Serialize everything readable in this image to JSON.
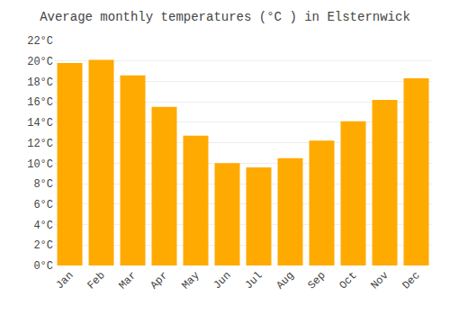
{
  "chart_data": {
    "type": "bar",
    "title": "Average monthly temperatures (°C ) in Elsternwick",
    "categories": [
      "Jan",
      "Feb",
      "Mar",
      "Apr",
      "May",
      "Jun",
      "Jul",
      "Aug",
      "Sep",
      "Oct",
      "Nov",
      "Dec"
    ],
    "values": [
      19.8,
      20.1,
      18.6,
      15.5,
      12.7,
      10.0,
      9.6,
      10.5,
      12.2,
      14.1,
      16.2,
      18.3
    ],
    "color": "#FFAA00",
    "ylim": [
      0,
      22
    ],
    "yticks": [
      {
        "value": 0,
        "label": "0°C"
      },
      {
        "value": 2,
        "label": "2°C"
      },
      {
        "value": 4,
        "label": "4°C"
      },
      {
        "value": 6,
        "label": "6°C"
      },
      {
        "value": 8,
        "label": "8°C"
      },
      {
        "value": 10,
        "label": "10°C"
      },
      {
        "value": 12,
        "label": "12°C"
      },
      {
        "value": 14,
        "label": "14°C"
      },
      {
        "value": 16,
        "label": "16°C"
      },
      {
        "value": 18,
        "label": "18°C"
      },
      {
        "value": 20,
        "label": "20°C"
      },
      {
        "value": 22,
        "label": "22°C"
      }
    ],
    "grid": true
  }
}
